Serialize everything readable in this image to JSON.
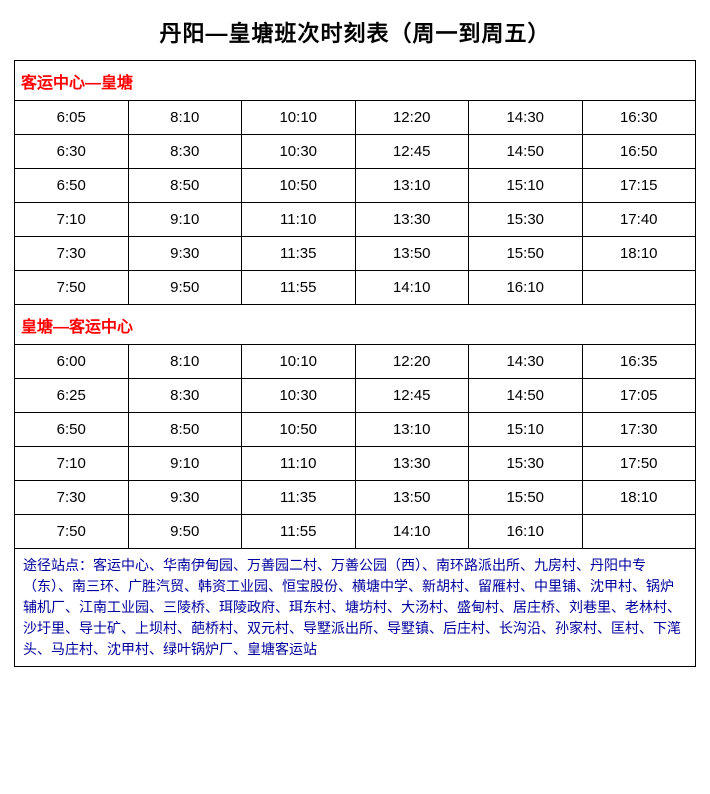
{
  "title": "丹阳—皇塘班次时刻表（周一到周五）",
  "section1": {
    "header": "客运中心—皇塘",
    "rows": [
      [
        "6:05",
        "8:10",
        "10:10",
        "12:20",
        "14:30",
        "16:30"
      ],
      [
        "6:30",
        "8:30",
        "10:30",
        "12:45",
        "14:50",
        "16:50"
      ],
      [
        "6:50",
        "8:50",
        "10:50",
        "13:10",
        "15:10",
        "17:15"
      ],
      [
        "7:10",
        "9:10",
        "11:10",
        "13:30",
        "15:30",
        "17:40"
      ],
      [
        "7:30",
        "9:30",
        "11:35",
        "13:50",
        "15:50",
        "18:10"
      ],
      [
        "7:50",
        "9:50",
        "11:55",
        "14:10",
        "16:10",
        ""
      ]
    ]
  },
  "section2": {
    "header": "皇塘—客运中心",
    "rows": [
      [
        "6:00",
        "8:10",
        "10:10",
        "12:20",
        "14:30",
        "16:35"
      ],
      [
        "6:25",
        "8:30",
        "10:30",
        "12:45",
        "14:50",
        "17:05"
      ],
      [
        "6:50",
        "8:50",
        "10:50",
        "13:10",
        "15:10",
        "17:30"
      ],
      [
        "7:10",
        "9:10",
        "11:10",
        "13:30",
        "15:30",
        "17:50"
      ],
      [
        "7:30",
        "9:30",
        "11:35",
        "13:50",
        "15:50",
        "18:10"
      ],
      [
        "7:50",
        "9:50",
        "11:55",
        "14:10",
        "16:10",
        ""
      ]
    ]
  },
  "footer": "途径站点：客运中心、华南伊甸园、万善园二村、万善公园（西）、南环路派出所、九房村、丹阳中专（东）、南三环、广胜汽贸、韩资工业园、恒宝股份、横塘中学、新胡村、留雁村、中里铺、沈甲村、锅炉辅机厂、江南工业园、三陵桥、珥陵政府、珥东村、塘坊村、大汤村、盛甸村、居庄桥、刘巷里、老林村、沙圩里、导士矿、上坝村、葩桥村、双元村、导墅派出所、导墅镇、后庄村、长沟沿、孙家村、匡村、下滗头、马庄村、沈甲村、绿叶锅炉厂、皇塘客运站",
  "colors": {
    "header_text": "#ff0000",
    "footer_text": "#00009c",
    "border": "#000000",
    "background": "#ffffff"
  },
  "layout": {
    "columns": 6,
    "font_size_title": 22,
    "font_size_cell": 15,
    "font_size_footer": 14
  }
}
